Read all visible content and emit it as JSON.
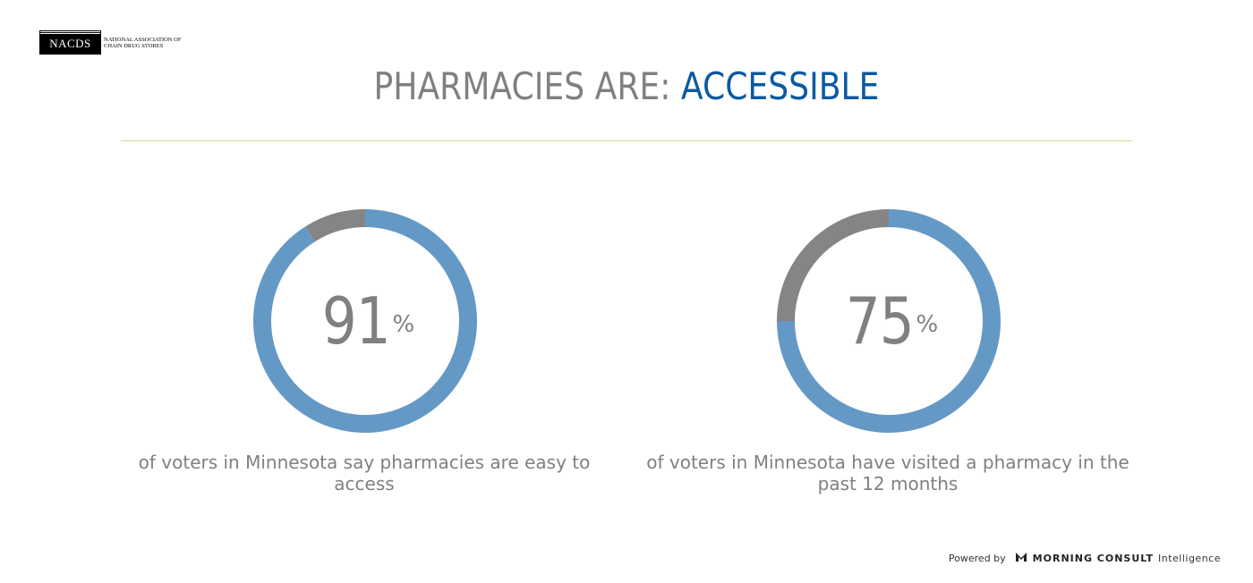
{
  "logo": {
    "abbrev": "NACDS",
    "line1": "NATIONAL ASSOCIATION OF",
    "line2": "CHAIN DRUG STORES"
  },
  "title": {
    "prefix": "PHARMACIES ARE: ",
    "accent": "ACCESSIBLE"
  },
  "colors": {
    "title_gray": "#808080",
    "accent_blue": "#0b5aa0",
    "donut_blue": "#6499c6",
    "donut_gray": "#858585",
    "divider": "#d7d98a"
  },
  "chart_data": [
    {
      "type": "pie",
      "values": [
        91,
        9
      ],
      "labels": [
        "",
        ""
      ],
      "display_value": "91",
      "unit": "%",
      "caption": "of voters in Minnesota say pharmacies are easy to access"
    },
    {
      "type": "pie",
      "values": [
        75,
        25
      ],
      "labels": [
        "",
        ""
      ],
      "display_value": "75",
      "unit": "%",
      "caption": "of voters in Minnesota have visited a pharmacy in the past 12 months"
    }
  ],
  "footer": {
    "powered_by": "Powered by",
    "icon": "morning-consult-m-icon",
    "brand": "MORNING CONSULT",
    "product": "Intelligence"
  }
}
